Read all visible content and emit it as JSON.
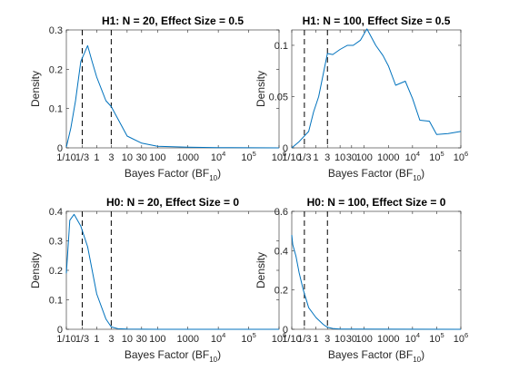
{
  "figure": {
    "colors": {
      "series": "#0072bd",
      "reference_lines": "#000000",
      "axes": "#262626"
    }
  },
  "chart_data": [
    {
      "type": "line",
      "title": "H1: N = 20, Effect Size = 0.5",
      "xlabel": "Bayes Factor (BF",
      "xlabel_subscript": "10",
      "xlabel_close": ")",
      "ylabel": "Density",
      "x_scale": "log",
      "xlim": [
        0.1,
        1000000
      ],
      "ylim": [
        0,
        0.3
      ],
      "yticks": [
        {
          "value": 0,
          "label": "0"
        },
        {
          "value": 0.1,
          "label": "0.1"
        },
        {
          "value": 0.2,
          "label": "0.2"
        },
        {
          "value": 0.3,
          "label": "0.3"
        }
      ],
      "reference_lines_x": [
        0.333,
        3
      ],
      "series": [
        {
          "x": [
            0.1,
            0.14,
            0.2,
            0.3,
            0.5,
            0.7,
            1,
            1.5,
            2,
            3,
            10,
            30,
            100,
            1000,
            10000,
            1000000
          ],
          "y": [
            0.002,
            0.05,
            0.12,
            0.22,
            0.26,
            0.22,
            0.18,
            0.145,
            0.12,
            0.105,
            0.03,
            0.012,
            0.004,
            0.0015,
            0.0008,
            0
          ]
        }
      ]
    },
    {
      "type": "line",
      "title": "H1: N = 100, Effect Size = 0.5",
      "xlabel": "Bayes Factor (BF",
      "xlabel_subscript": "10",
      "xlabel_close": ")",
      "ylabel": "Density",
      "x_scale": "log",
      "xlim": [
        0.1,
        1000000
      ],
      "ylim": [
        0,
        0.115
      ],
      "yticks": [
        {
          "value": 0,
          "label": "0"
        },
        {
          "value": 0.05,
          "label": "0.05"
        },
        {
          "value": 0.1,
          "label": "0.1"
        }
      ],
      "reference_lines_x": [
        0.333,
        3
      ],
      "series": [
        {
          "x": [
            0.1,
            0.2,
            0.5,
            0.8,
            1.3,
            3,
            5,
            10,
            20,
            35,
            70,
            130,
            300,
            600,
            1000,
            2000,
            5000,
            10000,
            20000,
            50000,
            100000,
            300000,
            1000000
          ],
          "y": [
            0.0,
            0.006,
            0.016,
            0.035,
            0.05,
            0.092,
            0.091,
            0.096,
            0.1,
            0.1,
            0.105,
            0.116,
            0.1,
            0.09,
            0.08,
            0.061,
            0.065,
            0.048,
            0.027,
            0.026,
            0.013,
            0.014,
            0.016
          ]
        }
      ]
    },
    {
      "type": "line",
      "title": "H0: N = 20, Effect Size = 0",
      "xlabel": "Bayes Factor (BF",
      "xlabel_subscript": "10",
      "xlabel_close": ")",
      "ylabel": "Density",
      "x_scale": "log",
      "xlim": [
        0.1,
        1000000
      ],
      "ylim": [
        0,
        0.4
      ],
      "yticks": [
        {
          "value": 0,
          "label": "0"
        },
        {
          "value": 0.1,
          "label": "0.1"
        },
        {
          "value": 0.2,
          "label": "0.2"
        },
        {
          "value": 0.3,
          "label": "0.3"
        },
        {
          "value": 0.4,
          "label": "0.4"
        }
      ],
      "reference_lines_x": [
        0.333,
        3
      ],
      "series": [
        {
          "x": [
            0.1,
            0.13,
            0.18,
            0.3,
            0.5,
            1,
            2,
            3,
            5,
            10,
            100,
            1000000
          ],
          "y": [
            0.19,
            0.37,
            0.39,
            0.35,
            0.28,
            0.12,
            0.035,
            0.008,
            0.002,
            0.0005,
            0,
            0
          ]
        }
      ]
    },
    {
      "type": "line",
      "title": "H0: N = 100, Effect Size = 0",
      "xlabel": "Bayes Factor (BF",
      "xlabel_subscript": "10",
      "xlabel_close": ")",
      "ylabel": "Density",
      "x_scale": "log",
      "xlim": [
        0.1,
        1000000
      ],
      "ylim": [
        0,
        0.6
      ],
      "yticks": [
        {
          "value": 0,
          "label": "0"
        },
        {
          "value": 0.2,
          "label": "0.2"
        },
        {
          "value": 0.4,
          "label": "0.4"
        },
        {
          "value": 0.6,
          "label": "0.6"
        }
      ],
      "reference_lines_x": [
        0.333,
        3
      ],
      "series": [
        {
          "x": [
            0.1,
            0.11,
            0.15,
            0.2,
            0.3,
            0.5,
            1,
            2,
            3,
            5,
            10,
            1000000
          ],
          "y": [
            0.48,
            0.43,
            0.37,
            0.29,
            0.2,
            0.11,
            0.06,
            0.025,
            0.01,
            0.004,
            0.001,
            0
          ]
        }
      ]
    }
  ],
  "x_ticks": [
    {
      "value": 0.1,
      "label": "1/10"
    },
    {
      "value": 0.333,
      "label": "1/3"
    },
    {
      "value": 1,
      "label": "1"
    },
    {
      "value": 3,
      "label": "3"
    },
    {
      "value": 10,
      "label": "10"
    },
    {
      "value": 30,
      "label": "30"
    },
    {
      "value": 100,
      "label": "100"
    },
    {
      "value": 1000,
      "label": "1000"
    },
    {
      "value": 10000,
      "base": "10",
      "exp": "4"
    },
    {
      "value": 100000,
      "base": "10",
      "exp": "5"
    },
    {
      "value": 1000000,
      "base": "10",
      "exp": "6"
    }
  ]
}
